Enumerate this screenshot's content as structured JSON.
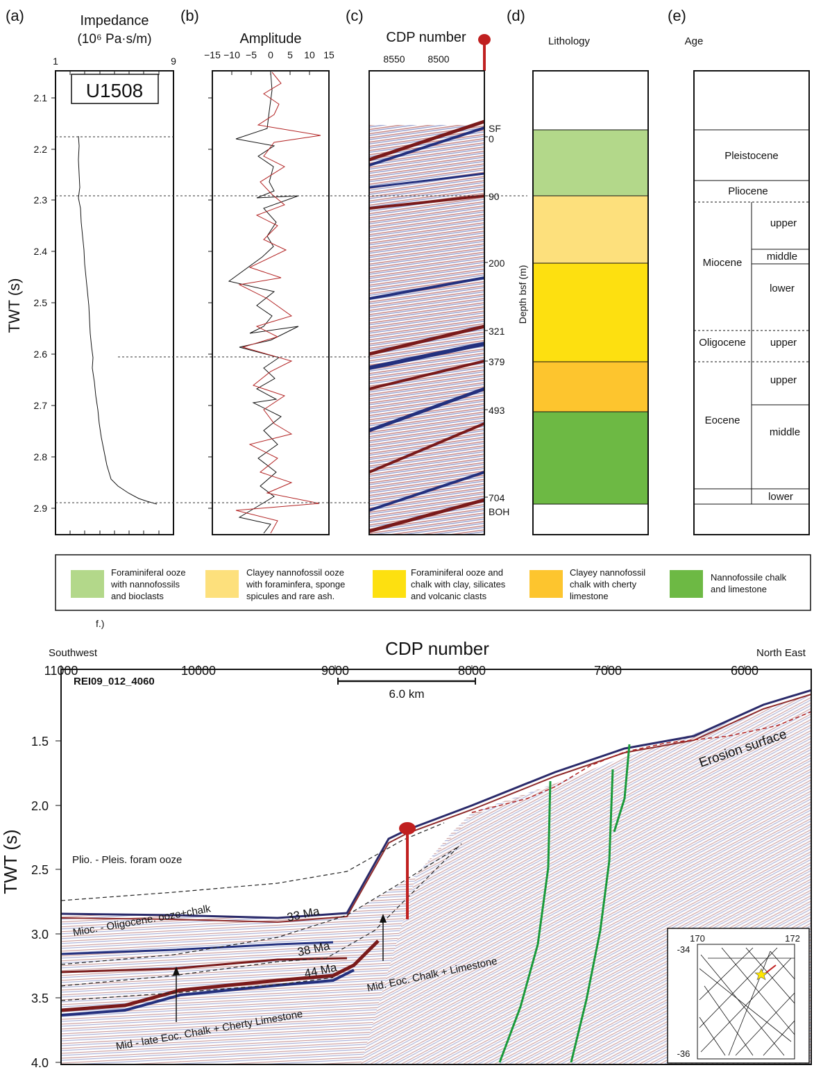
{
  "panel_labels": [
    "(a)",
    "(b)",
    "(c)",
    "(d)",
    "(e)",
    "f.)"
  ],
  "panel_a": {
    "title_line1": "Impedance",
    "title_line2": "(10⁶ Pa·s/m)",
    "site": "U1508",
    "x_ticks": [
      "1",
      "9"
    ],
    "y_label": "TWT (s)",
    "y_ticks": [
      "2.1",
      "2.2",
      "2.3",
      "2.4",
      "2.5",
      "2.6",
      "2.7",
      "2.8",
      "2.9"
    ]
  },
  "panel_b": {
    "title": "Amplitude",
    "x_ticks": [
      "−15",
      "−10",
      "−5",
      "0",
      "5",
      "10",
      "15"
    ]
  },
  "panel_c": {
    "title": "CDP number",
    "x_ticks": [
      "8550",
      "8500"
    ],
    "horizons": [
      "SF",
      "0",
      "90",
      "200",
      "321",
      "379",
      "493",
      "704",
      "BOH"
    ]
  },
  "panel_d": {
    "title": "Lithology",
    "axis_label": "Depth bsf (m)",
    "colors": [
      "#b3d88a",
      "#fde07c",
      "#fde010",
      "#fdc52e",
      "#6db944"
    ]
  },
  "panel_e": {
    "title": "Age",
    "epochs": [
      "Pleistocene",
      "Pliocene",
      "Miocene",
      "Oligocene",
      "Eocene"
    ],
    "subdivisions": [
      "upper",
      "middle",
      "lower",
      "upper",
      "upper",
      "middle",
      "lower"
    ]
  },
  "legend": {
    "items": [
      {
        "line1": "Foraminiferal ooze",
        "line2": "with nannofossils",
        "line3": "and bioclasts",
        "color": "#b3d88a"
      },
      {
        "line1": "Clayey nannofossil ooze",
        "line2": "with foraminfera, sponge",
        "line3": "spicules and rare ash.",
        "color": "#fde07c"
      },
      {
        "line1": "Foraminiferal ooze and",
        "line2": "chalk with clay, silicates",
        "line3": "and volcanic clasts",
        "color": "#fde010"
      },
      {
        "line1": "Clayey nannofossil",
        "line2": "chalk with cherty",
        "line3": "limestone",
        "color": "#fdc52e"
      },
      {
        "line1": "Nannofossile chalk",
        "line2": "and limestone",
        "line3": "",
        "color": "#6db944"
      }
    ]
  },
  "panel_f": {
    "title": "CDP number",
    "left_label": "Southwest",
    "right_label": "North East",
    "x_ticks": [
      "11000",
      "10000",
      "9000",
      "8000",
      "7000",
      "6000"
    ],
    "y_label": "TWT (s)",
    "y_ticks": [
      "1.5",
      "2.0",
      "2.5",
      "3.0",
      "3.5",
      "4.0"
    ],
    "line_name": "REI09_012_4060",
    "scale_bar": "6.0 km",
    "annotations": {
      "erosion": "Erosion surface",
      "plio": "Plio. - Pleis. foram ooze",
      "mioc": "Mioc. - Oligocene. ooze+chalk",
      "ma33": "33 Ma",
      "ma38": "38 Ma",
      "ma44": "44 Ma",
      "mid_eoc": "Mid. Eoc. Chalk + Limestone",
      "mid_late": "Mid - late Eoc. Chalk + Cherty Limestone"
    },
    "inset": {
      "lon_left": "170",
      "lon_right": "172",
      "lat_top": "-34",
      "lat_bottom": "-36"
    }
  }
}
